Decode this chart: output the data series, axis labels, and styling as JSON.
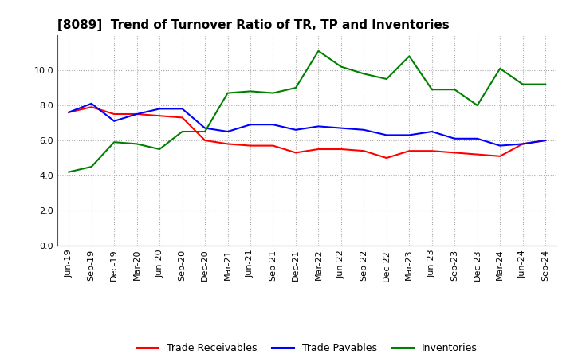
{
  "title": "[8089]  Trend of Turnover Ratio of TR, TP and Inventories",
  "x_labels": [
    "Jun-19",
    "Sep-19",
    "Dec-19",
    "Mar-20",
    "Jun-20",
    "Sep-20",
    "Dec-20",
    "Mar-21",
    "Jun-21",
    "Sep-21",
    "Dec-21",
    "Mar-22",
    "Jun-22",
    "Sep-22",
    "Dec-22",
    "Mar-23",
    "Jun-23",
    "Sep-23",
    "Dec-23",
    "Mar-24",
    "Jun-24",
    "Sep-24"
  ],
  "trade_receivables": [
    7.6,
    7.9,
    7.5,
    7.5,
    7.4,
    7.3,
    6.0,
    5.8,
    5.7,
    5.7,
    5.3,
    5.5,
    5.5,
    5.4,
    5.0,
    5.4,
    5.4,
    5.3,
    5.2,
    5.1,
    5.8,
    6.0
  ],
  "trade_payables": [
    7.6,
    8.1,
    7.1,
    7.5,
    7.8,
    7.8,
    6.7,
    6.5,
    6.9,
    6.9,
    6.6,
    6.8,
    6.7,
    6.6,
    6.3,
    6.3,
    6.5,
    6.1,
    6.1,
    5.7,
    5.8,
    6.0
  ],
  "inventories": [
    4.2,
    4.5,
    5.9,
    5.8,
    5.5,
    6.5,
    6.5,
    8.7,
    8.8,
    8.7,
    9.0,
    11.1,
    10.2,
    9.8,
    9.5,
    10.8,
    8.9,
    8.9,
    8.0,
    10.1,
    9.2,
    9.2
  ],
  "color_tr": "#ff0000",
  "color_tp": "#0000ff",
  "color_inv": "#008000",
  "ylim": [
    0,
    12
  ],
  "yticks": [
    0.0,
    2.0,
    4.0,
    6.0,
    8.0,
    10.0
  ],
  "legend_labels": [
    "Trade Receivables",
    "Trade Payables",
    "Inventories"
  ],
  "background_color": "#ffffff",
  "plot_bg_color": "#ffffff",
  "title_fontsize": 11,
  "tick_fontsize": 8,
  "line_width": 1.5
}
